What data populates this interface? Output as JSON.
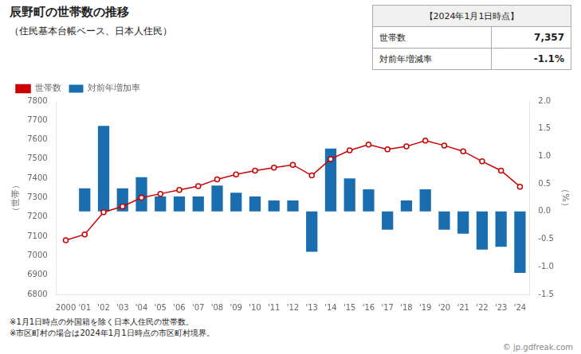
{
  "chart_data": {
    "type": "bar",
    "title": "辰野町の世帯数の推移",
    "subtitle": "（住民基本台帳ベース、日本人住民）",
    "categories": [
      "2000",
      "'01",
      "'02",
      "'03",
      "'04",
      "'05",
      "'06",
      "'07",
      "'08",
      "'09",
      "'10",
      "'11",
      "'12",
      "'13",
      "'14",
      "'15",
      "'16",
      "'17",
      "'18",
      "'19",
      "'20",
      "'21",
      "'22",
      "'23",
      "'24"
    ],
    "series": [
      {
        "name": "対前年増加率",
        "type": "bar",
        "color": "#1a6eaf",
        "axis": "y2",
        "values": [
          0.0,
          0.42,
          1.55,
          0.42,
          0.62,
          0.27,
          0.27,
          0.27,
          0.47,
          0.34,
          0.27,
          0.2,
          0.2,
          -0.73,
          1.14,
          0.6,
          0.4,
          -0.33,
          0.2,
          0.4,
          -0.33,
          -0.4,
          -0.69,
          -0.64,
          -1.11
        ]
      },
      {
        "name": "世帯数",
        "type": "line",
        "color": "#cc0000",
        "marker": "circle",
        "values": [
          7080,
          7110,
          7225,
          7255,
          7300,
          7320,
          7340,
          7360,
          7395,
          7420,
          7440,
          7455,
          7470,
          7415,
          7500,
          7545,
          7575,
          7550,
          7565,
          7595,
          7570,
          7540,
          7488,
          7440,
          7357
        ]
      }
    ],
    "ylabel": "（世帯）",
    "y2label": "（%）",
    "ylim": [
      6800,
      7800
    ],
    "yticks": [
      6800,
      6900,
      7000,
      7100,
      7200,
      7300,
      7400,
      7500,
      7600,
      7700,
      7800
    ],
    "y2lim": [
      -1.5,
      2.0
    ],
    "y2ticks": [
      -1.5,
      {
        "value": -1.0,
        "label": "-1.0"
      },
      -0.5,
      {
        "value": 0.0,
        "label": "0.0"
      },
      0.5,
      {
        "value": 1.0,
        "label": "1.0"
      },
      1.5,
      {
        "value": 2.0,
        "label": "2.0"
      }
    ],
    "grid": false,
    "legend": "upper left",
    "info_box": {
      "title": "【2024年1月1日時点】",
      "rows": [
        {
          "label": "世帯数",
          "value": "7,357"
        },
        {
          "label": "対前年増減率",
          "value": "-1.1%"
        }
      ]
    },
    "notes": [
      "※1月1日時点の外国籍を除く日本人住民の世帯数。",
      "※市区町村の場合は2024年1月1日時点の市区町村境界。"
    ],
    "copyright": "© jp.gdfreak.com"
  }
}
